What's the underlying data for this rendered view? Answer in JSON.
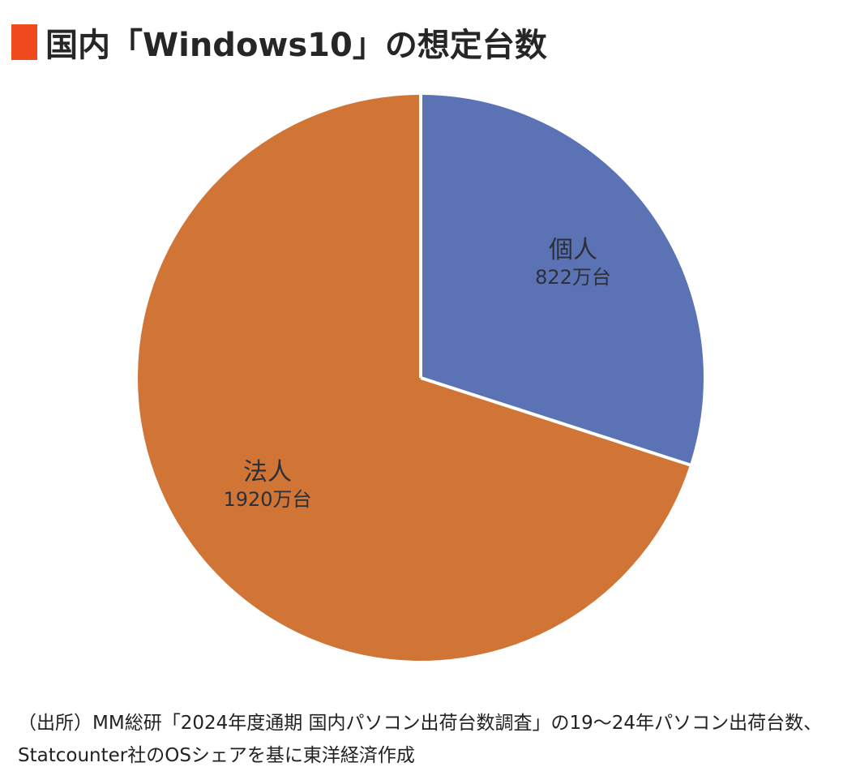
{
  "title": {
    "text": "国内「Windows10」の想定台数",
    "marker_color": "#f04a1e"
  },
  "chart_data": {
    "type": "pie",
    "title": "国内「Windows10」の想定台数",
    "unit": "万台",
    "start_angle_deg": 0,
    "direction": "clockwise",
    "slices": [
      {
        "name": "個人",
        "value": 822,
        "label": "822万台",
        "color": "#5b73b5",
        "text_color": "#2b3344"
      },
      {
        "name": "法人",
        "value": 1920,
        "label": "1920万台",
        "color": "#d17537",
        "text_color": "#2f2a24"
      }
    ],
    "legend": "none (labels inside slices)"
  },
  "labels": {
    "kojin_name": "個人",
    "kojin_value": "822万台",
    "houjin_name": "法人",
    "houjin_value": "1920万台"
  },
  "source": {
    "text": "（出所）MM総研「2024年度通期 国内パソコン出荷台数調査」の19〜24年パソコン出荷台数、Statcounter社のOSシェアを基に東洋経済作成"
  }
}
